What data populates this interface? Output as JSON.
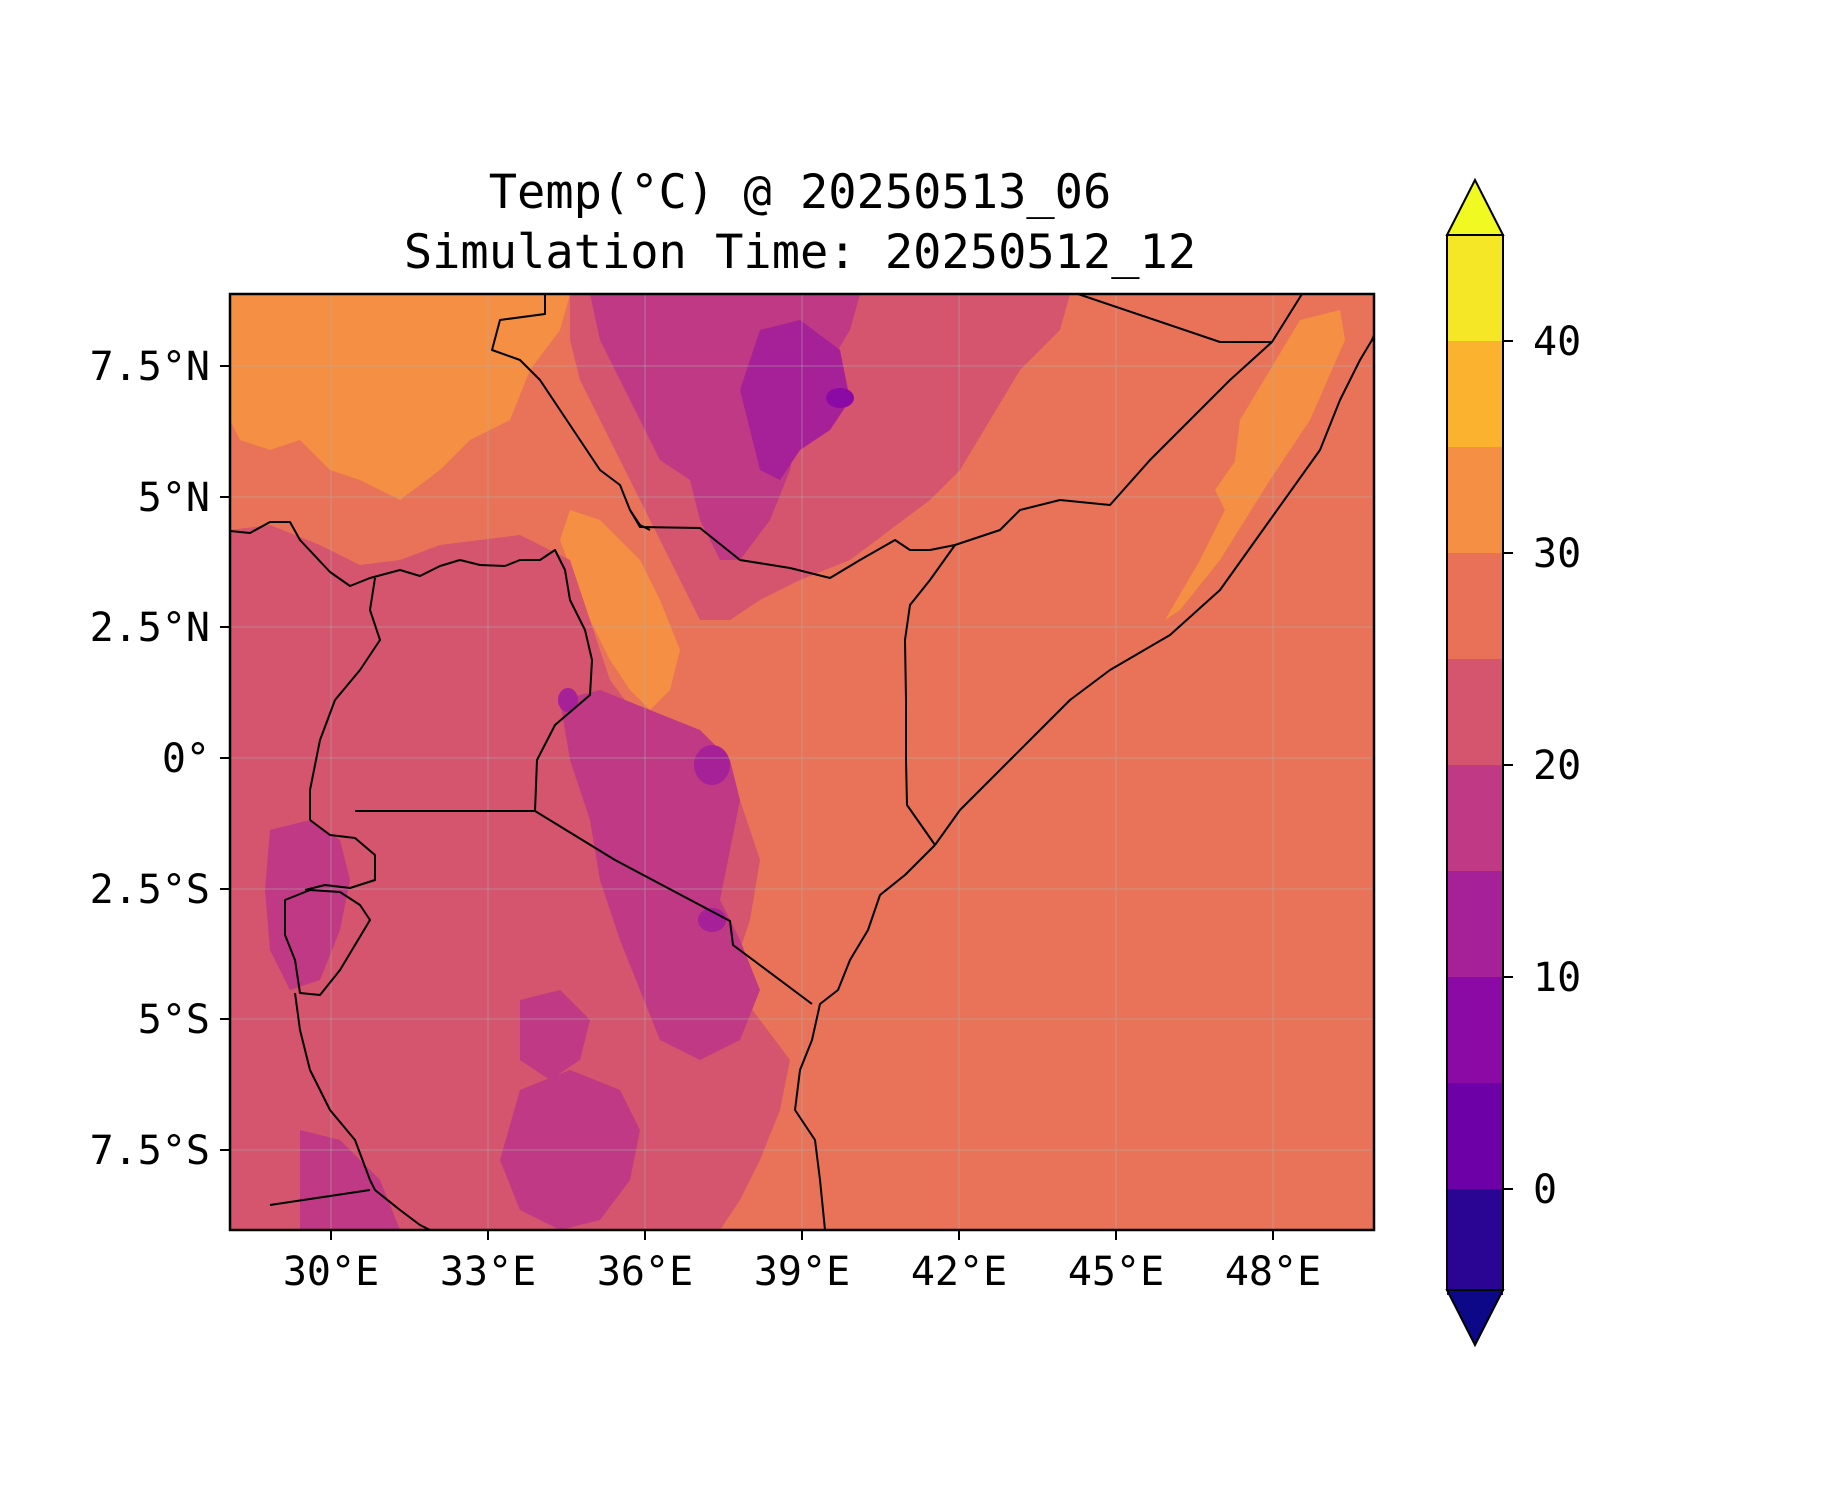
{
  "figure": {
    "title_line1": "Temp(°C) @ 20250513_06",
    "title_line2": "Simulation Time: 20250512_12"
  },
  "map": {
    "x_ticks": [
      "30°E",
      "33°E",
      "36°E",
      "39°E",
      "42°E",
      "45°E",
      "48°E"
    ],
    "y_ticks": [
      "7.5°N",
      "5°N",
      "2.5°N",
      "0°",
      "2.5°S",
      "5°S",
      "7.5°S"
    ],
    "x_tick_values": [
      30,
      33,
      36,
      39,
      42,
      45,
      48
    ],
    "y_tick_values": [
      7.5,
      5,
      2.5,
      0,
      -2.5,
      -5,
      -7.5
    ],
    "lon_range": [
      28.1,
      50.0
    ],
    "lat_range": [
      -9.0,
      8.9
    ],
    "colors": {
      "lowland_hot": "#e97358",
      "warm": "#d5546e",
      "cool_highland": "#bf3984",
      "cold_highland": "#a62098",
      "very_cold": "#8b0aa5",
      "hot_desert": "#f48f43",
      "border": "#000000"
    }
  },
  "colorbar": {
    "tick_labels": [
      "40",
      "30",
      "20",
      "10",
      "0"
    ],
    "tick_values": [
      40,
      30,
      20,
      10,
      0
    ],
    "levels": [
      -5,
      0,
      5,
      10,
      15,
      20,
      25,
      30,
      35,
      40,
      45
    ],
    "colors": [
      "#2a0593",
      "#4c02a1",
      "#6e00a8",
      "#8b0aa5",
      "#a62098",
      "#bf3984",
      "#d5546e",
      "#e97158",
      "#f48f43",
      "#fbb32f",
      "#f5e626"
    ],
    "under_color": "#0d0887",
    "over_color": "#f0f921",
    "extend": "both"
  }
}
